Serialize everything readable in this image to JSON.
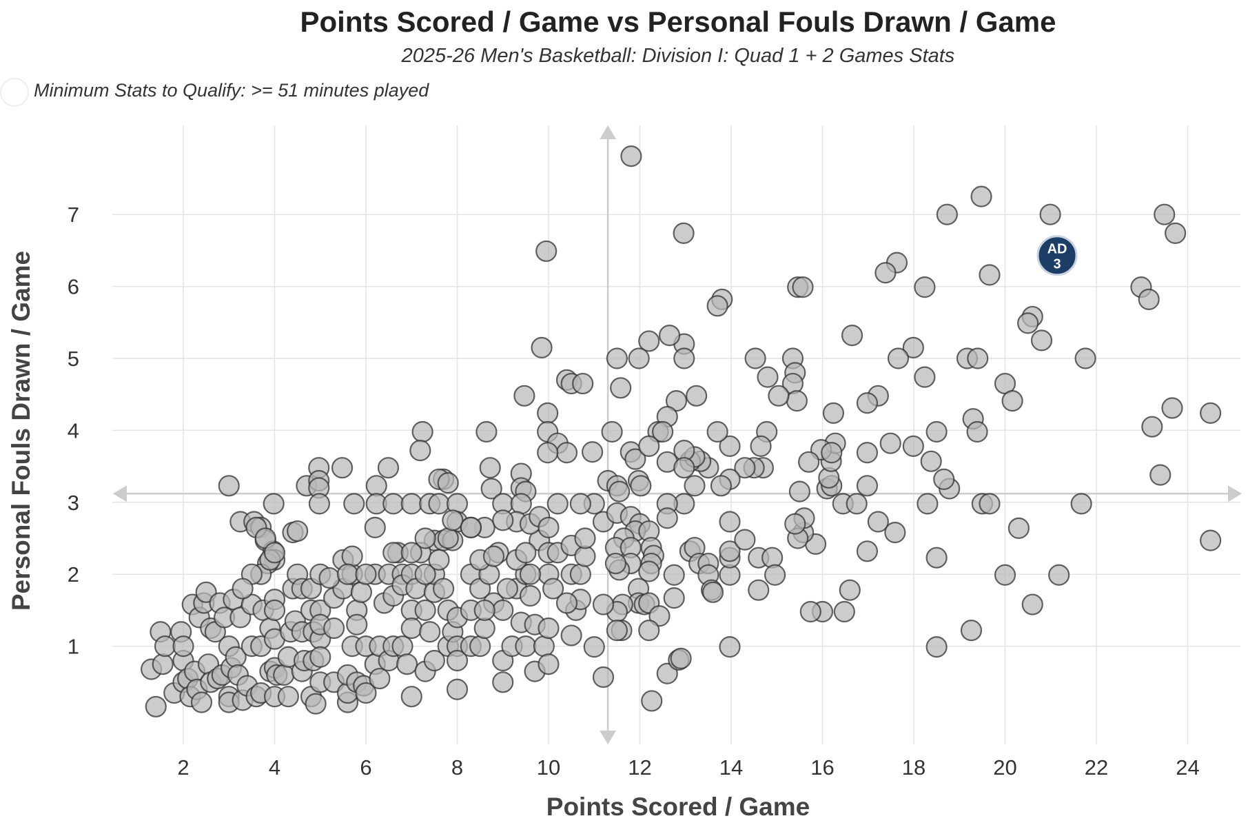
{
  "chart_data": {
    "type": "scatter",
    "title": "Points Scored / Game vs Personal Fouls Drawn / Game",
    "subtitle": "2025-26 Men's Basketball: Division I: Quad 1 + 2 Games Stats",
    "note": "Minimum Stats to Qualify: >= 51 minutes played",
    "xlabel": "Points Scored / Game",
    "ylabel": "Personal Fouls Drawn / Game",
    "xlim": [
      0.6,
      25.2
    ],
    "ylim": [
      0,
      8.3
    ],
    "xticks": [
      "2",
      "4",
      "6",
      "8",
      "10",
      "12",
      "14",
      "16",
      "18",
      "20",
      "22",
      "24"
    ],
    "yticks": [
      "1",
      "2",
      "3",
      "4",
      "5",
      "6",
      "7"
    ],
    "grid": true,
    "reference_lines": {
      "x": 11.3,
      "y": 3.12
    },
    "highlight": {
      "label": "AD",
      "sublabel": "3",
      "x": 21.14,
      "y": 6.43,
      "color": "#1b3d66"
    },
    "colors": {
      "point_fill": "#bdbdbd",
      "point_stroke": "#444444",
      "reference": "#cccccc"
    },
    "points": [
      [
        11.81,
        7.81
      ],
      [
        9.95,
        6.49
      ],
      [
        12.96,
        6.74
      ],
      [
        18.73,
        7.0
      ],
      [
        19.48,
        7.25
      ],
      [
        20.99,
        7.0
      ],
      [
        23.49,
        7.0
      ],
      [
        23.73,
        6.74
      ],
      [
        22.98,
        5.99
      ],
      [
        23.15,
        5.82
      ],
      [
        19.66,
        6.16
      ],
      [
        17.63,
        6.33
      ],
      [
        17.38,
        6.19
      ],
      [
        18.24,
        5.99
      ],
      [
        15.46,
        5.99
      ],
      [
        15.57,
        5.99
      ],
      [
        13.8,
        5.82
      ],
      [
        13.7,
        5.73
      ],
      [
        20.6,
        5.58
      ],
      [
        20.5,
        5.49
      ],
      [
        20.8,
        5.25
      ],
      [
        21.76,
        5.0
      ],
      [
        16.65,
        5.32
      ],
      [
        17.99,
        5.15
      ],
      [
        17.66,
        5.0
      ],
      [
        19.17,
        5.0
      ],
      [
        19.4,
        5.0
      ],
      [
        20.0,
        4.65
      ],
      [
        20.16,
        4.41
      ],
      [
        18.24,
        4.74
      ],
      [
        17.22,
        4.48
      ],
      [
        16.98,
        4.38
      ],
      [
        19.3,
        4.16
      ],
      [
        19.39,
        3.98
      ],
      [
        23.22,
        4.05
      ],
      [
        23.66,
        4.31
      ],
      [
        24.5,
        4.24
      ],
      [
        23.4,
        3.38
      ],
      [
        24.5,
        2.47
      ],
      [
        21.67,
        2.98
      ],
      [
        19.5,
        2.98
      ],
      [
        19.66,
        2.98
      ],
      [
        18.78,
        3.19
      ],
      [
        18.66,
        3.32
      ],
      [
        18.38,
        3.57
      ],
      [
        18.5,
        3.98
      ],
      [
        17.99,
        3.78
      ],
      [
        17.49,
        3.82
      ],
      [
        16.98,
        3.69
      ],
      [
        16.98,
        3.23
      ],
      [
        17.22,
        2.73
      ],
      [
        17.59,
        2.58
      ],
      [
        16.98,
        2.32
      ],
      [
        18.3,
        2.98
      ],
      [
        18.5,
        2.23
      ],
      [
        20.3,
        2.64
      ],
      [
        20.0,
        1.99
      ],
      [
        21.18,
        1.99
      ],
      [
        20.6,
        1.58
      ],
      [
        19.26,
        1.22
      ],
      [
        18.5,
        0.99
      ],
      [
        16.6,
        1.78
      ],
      [
        16.48,
        1.48
      ],
      [
        16.0,
        1.48
      ],
      [
        15.74,
        1.48
      ],
      [
        15.85,
        2.42
      ],
      [
        15.58,
        2.58
      ],
      [
        15.46,
        2.5
      ],
      [
        15.6,
        2.78
      ],
      [
        15.4,
        2.7
      ],
      [
        16.1,
        3.19
      ],
      [
        16.2,
        3.23
      ],
      [
        16.14,
        3.34
      ],
      [
        16.19,
        3.57
      ],
      [
        16.28,
        3.82
      ],
      [
        15.97,
        3.73
      ],
      [
        16.2,
        3.69
      ],
      [
        15.7,
        3.56
      ],
      [
        16.24,
        4.24
      ],
      [
        16.45,
        2.98
      ],
      [
        16.75,
        2.98
      ],
      [
        15.5,
        3.15
      ],
      [
        15.35,
        5.0
      ],
      [
        15.4,
        4.8
      ],
      [
        15.35,
        4.65
      ],
      [
        15.44,
        4.41
      ],
      [
        15.04,
        4.48
      ],
      [
        14.8,
        4.74
      ],
      [
        14.53,
        5.0
      ],
      [
        14.78,
        3.98
      ],
      [
        14.65,
        3.78
      ],
      [
        14.7,
        3.48
      ],
      [
        14.5,
        3.48
      ],
      [
        14.3,
        3.48
      ],
      [
        13.97,
        3.78
      ],
      [
        13.7,
        3.98
      ],
      [
        13.97,
        3.32
      ],
      [
        13.78,
        3.23
      ],
      [
        13.5,
        3.48
      ],
      [
        13.33,
        3.57
      ],
      [
        13.1,
        3.57
      ],
      [
        13.2,
        3.63
      ],
      [
        13.24,
        4.48
      ],
      [
        12.8,
        4.41
      ],
      [
        12.6,
        4.19
      ],
      [
        12.4,
        3.98
      ],
      [
        12.5,
        3.98
      ],
      [
        12.97,
        5.2
      ],
      [
        12.97,
        5.0
      ],
      [
        12.65,
        5.32
      ],
      [
        12.2,
        5.24
      ],
      [
        11.98,
        5.0
      ],
      [
        11.5,
        5.0
      ],
      [
        11.58,
        4.59
      ],
      [
        11.39,
        3.98
      ],
      [
        11.8,
        3.7
      ],
      [
        11.9,
        3.6
      ],
      [
        12.2,
        3.78
      ],
      [
        11.97,
        3.3
      ],
      [
        12.02,
        3.23
      ],
      [
        12.6,
        3.56
      ],
      [
        12.97,
        3.72
      ],
      [
        12.97,
        3.48
      ],
      [
        13.2,
        3.23
      ],
      [
        12.97,
        2.98
      ],
      [
        12.6,
        2.98
      ],
      [
        12.6,
        2.78
      ],
      [
        11.3,
        3.3
      ],
      [
        11.5,
        3.23
      ],
      [
        11.55,
        3.15
      ],
      [
        11.0,
        2.98
      ],
      [
        11.2,
        2.73
      ],
      [
        11.5,
        2.85
      ],
      [
        11.8,
        2.8
      ],
      [
        12.0,
        2.7
      ],
      [
        11.9,
        2.6
      ],
      [
        11.65,
        2.5
      ],
      [
        11.47,
        2.37
      ],
      [
        11.8,
        2.37
      ],
      [
        12.2,
        2.6
      ],
      [
        12.25,
        2.37
      ],
      [
        12.3,
        2.26
      ],
      [
        12.25,
        2.15
      ],
      [
        12.2,
        2.04
      ],
      [
        11.8,
        2.15
      ],
      [
        11.55,
        2.06
      ],
      [
        11.47,
        2.15
      ],
      [
        11.97,
        1.8
      ],
      [
        11.97,
        1.6
      ],
      [
        11.62,
        1.58
      ],
      [
        11.5,
        1.48
      ],
      [
        11.6,
        1.22
      ],
      [
        11.5,
        1.22
      ],
      [
        12.1,
        1.58
      ],
      [
        12.2,
        1.6
      ],
      [
        12.43,
        1.42
      ],
      [
        12.2,
        1.22
      ],
      [
        12.6,
        0.62
      ],
      [
        12.26,
        0.24
      ],
      [
        12.85,
        0.81
      ],
      [
        12.9,
        0.83
      ],
      [
        12.75,
        1.67
      ],
      [
        12.75,
        1.99
      ],
      [
        13.1,
        2.32
      ],
      [
        13.2,
        2.37
      ],
      [
        13.3,
        2.15
      ],
      [
        13.5,
        2.15
      ],
      [
        13.5,
        1.99
      ],
      [
        13.57,
        1.78
      ],
      [
        13.6,
        1.75
      ],
      [
        13.97,
        1.99
      ],
      [
        13.97,
        2.23
      ],
      [
        13.97,
        2.32
      ],
      [
        13.97,
        2.73
      ],
      [
        14.3,
        2.48
      ],
      [
        14.6,
        2.23
      ],
      [
        14.9,
        2.23
      ],
      [
        14.96,
        1.99
      ],
      [
        14.6,
        1.78
      ],
      [
        13.97,
        0.99
      ],
      [
        11.0,
        0.99
      ],
      [
        11.2,
        0.57
      ],
      [
        11.2,
        1.58
      ],
      [
        10.4,
        4.7
      ],
      [
        10.5,
        4.65
      ],
      [
        10.75,
        4.65
      ],
      [
        9.98,
        4.24
      ],
      [
        9.98,
        3.98
      ],
      [
        10.2,
        3.82
      ],
      [
        10.4,
        3.69
      ],
      [
        9.98,
        3.69
      ],
      [
        9.85,
        5.15
      ],
      [
        9.47,
        4.48
      ],
      [
        10.7,
        2.98
      ],
      [
        10.2,
        2.98
      ],
      [
        10.96,
        3.7
      ],
      [
        7.24,
        3.98
      ],
      [
        8.64,
        3.98
      ],
      [
        7.19,
        3.72
      ],
      [
        7.7,
        3.32
      ],
      [
        7.6,
        3.32
      ],
      [
        7.8,
        3.27
      ],
      [
        8.72,
        3.48
      ],
      [
        8.75,
        3.19
      ],
      [
        9.4,
        3.4
      ],
      [
        9.4,
        3.2
      ],
      [
        9.5,
        3.15
      ],
      [
        5.48,
        3.48
      ],
      [
        4.97,
        3.48
      ],
      [
        6.49,
        3.48
      ],
      [
        6.23,
        3.23
      ],
      [
        3.0,
        3.23
      ],
      [
        4.7,
        3.23
      ],
      [
        4.97,
        3.3
      ],
      [
        4.97,
        3.2
      ],
      [
        4.98,
        2.98
      ],
      [
        5.74,
        2.98
      ],
      [
        6.23,
        2.98
      ],
      [
        6.6,
        2.98
      ],
      [
        7.0,
        2.98
      ],
      [
        7.4,
        2.98
      ],
      [
        7.6,
        2.98
      ],
      [
        8.0,
        2.98
      ],
      [
        9.0,
        2.98
      ],
      [
        9.4,
        2.98
      ],
      [
        3.98,
        2.98
      ],
      [
        3.25,
        2.73
      ],
      [
        3.55,
        2.73
      ],
      [
        3.7,
        2.65
      ],
      [
        4.4,
        2.58
      ],
      [
        3.8,
        2.47
      ],
      [
        3.97,
        2.32
      ],
      [
        4.0,
        2.2
      ],
      [
        3.85,
        2.15
      ],
      [
        3.7,
        2.0
      ],
      [
        8.0,
        2.73
      ],
      [
        8.6,
        2.65
      ],
      [
        8.3,
        2.65
      ],
      [
        9.3,
        2.73
      ],
      [
        7.5,
        2.47
      ],
      [
        7.7,
        2.47
      ],
      [
        7.9,
        2.47
      ],
      [
        9.8,
        2.47
      ],
      [
        1.3,
        0.68
      ],
      [
        1.4,
        0.16
      ],
      [
        1.5,
        1.2
      ],
      [
        1.55,
        0.75
      ],
      [
        1.6,
        1.0
      ],
      [
        1.8,
        0.35
      ],
      [
        1.95,
        1.2
      ],
      [
        2.0,
        0.8
      ],
      [
        2.0,
        1.0
      ],
      [
        2.0,
        0.5
      ],
      [
        2.1,
        0.55
      ],
      [
        2.15,
        0.3
      ],
      [
        2.2,
        1.58
      ],
      [
        2.25,
        0.65
      ],
      [
        2.3,
        0.4
      ],
      [
        2.4,
        0.22
      ],
      [
        2.35,
        1.4
      ],
      [
        2.45,
        1.6
      ],
      [
        2.5,
        1.75
      ],
      [
        2.55,
        0.75
      ],
      [
        2.6,
        1.25
      ],
      [
        2.6,
        0.5
      ],
      [
        2.7,
        1.2
      ],
      [
        2.75,
        0.55
      ],
      [
        2.8,
        1.6
      ],
      [
        2.85,
        0.6
      ],
      [
        2.9,
        1.4
      ],
      [
        3.0,
        1.0
      ],
      [
        3.0,
        0.3
      ],
      [
        3.0,
        0.22
      ],
      [
        3.05,
        0.7
      ],
      [
        3.1,
        1.65
      ],
      [
        3.15,
        0.85
      ],
      [
        3.2,
        0.6
      ],
      [
        3.25,
        1.4
      ],
      [
        3.3,
        0.25
      ],
      [
        3.4,
        0.45
      ],
      [
        3.5,
        1.58
      ],
      [
        3.5,
        1.0
      ],
      [
        3.6,
        0.3
      ],
      [
        3.7,
        0.35
      ],
      [
        3.7,
        1.0
      ],
      [
        3.75,
        1.5
      ],
      [
        3.9,
        1.25
      ],
      [
        3.9,
        0.65
      ],
      [
        4.0,
        1.65
      ],
      [
        4.0,
        1.5
      ],
      [
        4.0,
        1.1
      ],
      [
        4.0,
        0.7
      ],
      [
        4.0,
        0.3
      ],
      [
        4.05,
        0.6
      ],
      [
        4.2,
        0.6
      ],
      [
        4.3,
        0.3
      ],
      [
        4.3,
        0.85
      ],
      [
        4.35,
        1.2
      ],
      [
        4.4,
        1.8
      ],
      [
        4.45,
        1.35
      ],
      [
        4.5,
        2.0
      ],
      [
        4.6,
        1.8
      ],
      [
        4.6,
        1.2
      ],
      [
        4.6,
        0.65
      ],
      [
        4.65,
        0.8
      ],
      [
        4.8,
        1.5
      ],
      [
        4.8,
        1.8
      ],
      [
        4.85,
        1.2
      ],
      [
        4.85,
        0.8
      ],
      [
        4.8,
        0.3
      ],
      [
        4.9,
        0.2
      ],
      [
        5.0,
        2.0
      ],
      [
        5.0,
        1.5
      ],
      [
        5.0,
        1.1
      ],
      [
        5.0,
        0.85
      ],
      [
        5.0,
        0.5
      ],
      [
        5.0,
        1.3
      ],
      [
        5.3,
        1.25
      ],
      [
        5.3,
        1.67
      ],
      [
        5.3,
        0.5
      ],
      [
        5.5,
        2.2
      ],
      [
        5.5,
        1.8
      ],
      [
        5.6,
        0.22
      ],
      [
        5.6,
        0.35
      ],
      [
        5.6,
        0.6
      ],
      [
        5.7,
        2.0
      ],
      [
        5.7,
        1.0
      ],
      [
        5.8,
        1.5
      ],
      [
        5.8,
        1.3
      ],
      [
        5.8,
        0.5
      ],
      [
        5.9,
        1.75
      ],
      [
        5.95,
        0.45
      ],
      [
        6.0,
        1.0
      ],
      [
        6.0,
        0.35
      ],
      [
        6.2,
        2.0
      ],
      [
        6.2,
        0.75
      ],
      [
        6.3,
        1.0
      ],
      [
        6.3,
        0.55
      ],
      [
        6.4,
        1.6
      ],
      [
        6.5,
        2.0
      ],
      [
        6.5,
        0.8
      ],
      [
        6.6,
        1.7
      ],
      [
        6.6,
        1.0
      ],
      [
        6.7,
        2.3
      ],
      [
        6.8,
        2.0
      ],
      [
        6.8,
        1.85
      ],
      [
        6.8,
        1.0
      ],
      [
        6.9,
        0.75
      ],
      [
        7.0,
        2.0
      ],
      [
        7.0,
        1.5
      ],
      [
        7.0,
        1.25
      ],
      [
        7.0,
        0.3
      ],
      [
        7.1,
        1.8
      ],
      [
        7.2,
        2.3
      ],
      [
        7.3,
        2.5
      ],
      [
        7.3,
        1.5
      ],
      [
        7.3,
        0.65
      ],
      [
        7.4,
        1.2
      ],
      [
        7.5,
        1.75
      ],
      [
        7.5,
        2.0
      ],
      [
        7.5,
        0.8
      ],
      [
        7.7,
        1.8
      ],
      [
        7.8,
        1.5
      ],
      [
        7.8,
        1.0
      ],
      [
        7.9,
        1.2
      ],
      [
        8.0,
        1.4
      ],
      [
        8.0,
        1.0
      ],
      [
        8.0,
        0.4
      ],
      [
        8.0,
        0.8
      ],
      [
        8.3,
        2.0
      ],
      [
        8.3,
        1.5
      ],
      [
        8.3,
        1.0
      ],
      [
        8.5,
        1.8
      ],
      [
        8.5,
        1.0
      ],
      [
        8.6,
        1.25
      ],
      [
        8.7,
        2.0
      ],
      [
        8.8,
        1.6
      ],
      [
        8.9,
        2.3
      ],
      [
        9.0,
        1.5
      ],
      [
        9.0,
        0.8
      ],
      [
        9.0,
        0.5
      ],
      [
        9.2,
        1.0
      ],
      [
        9.3,
        1.8
      ],
      [
        9.4,
        1.33
      ],
      [
        9.5,
        1.0
      ],
      [
        9.5,
        2.0
      ],
      [
        9.6,
        1.7
      ],
      [
        9.7,
        0.65
      ],
      [
        9.7,
        1.3
      ],
      [
        9.9,
        1.0
      ],
      [
        10.0,
        1.25
      ],
      [
        10.0,
        0.75
      ],
      [
        10.0,
        2.0
      ],
      [
        10.5,
        1.15
      ],
      [
        10.6,
        1.5
      ],
      [
        10.7,
        1.65
      ],
      [
        10.5,
        2.0
      ],
      [
        10.7,
        2.0
      ],
      [
        3.6,
        2.65
      ],
      [
        3.8,
        2.5
      ],
      [
        3.9,
        2.2
      ],
      [
        4.0,
        2.3
      ],
      [
        3.5,
        2.0
      ],
      [
        3.3,
        1.8
      ],
      [
        4.5,
        2.6
      ],
      [
        5.2,
        1.95
      ],
      [
        5.7,
        2.25
      ],
      [
        5.6,
        2.0
      ],
      [
        6.2,
        2.65
      ],
      [
        6.0,
        2.0
      ],
      [
        6.6,
        2.3
      ],
      [
        7.0,
        2.3
      ],
      [
        7.3,
        2.0
      ],
      [
        7.6,
        2.2
      ],
      [
        7.8,
        2.5
      ],
      [
        7.9,
        2.75
      ],
      [
        8.3,
        2.65
      ],
      [
        8.5,
        2.2
      ],
      [
        8.8,
        2.25
      ],
      [
        9.0,
        2.75
      ],
      [
        9.3,
        2.2
      ],
      [
        9.5,
        2.3
      ],
      [
        9.6,
        2.7
      ],
      [
        9.8,
        2.8
      ],
      [
        10.0,
        2.65
      ],
      [
        10.0,
        2.3
      ],
      [
        10.2,
        2.3
      ],
      [
        10.5,
        2.4
      ],
      [
        10.8,
        2.25
      ],
      [
        10.8,
        2.5
      ],
      [
        8.6,
        1.5
      ],
      [
        9.1,
        1.8
      ],
      [
        9.6,
        2.0
      ],
      [
        10.1,
        1.8
      ],
      [
        10.4,
        1.6
      ]
    ]
  }
}
